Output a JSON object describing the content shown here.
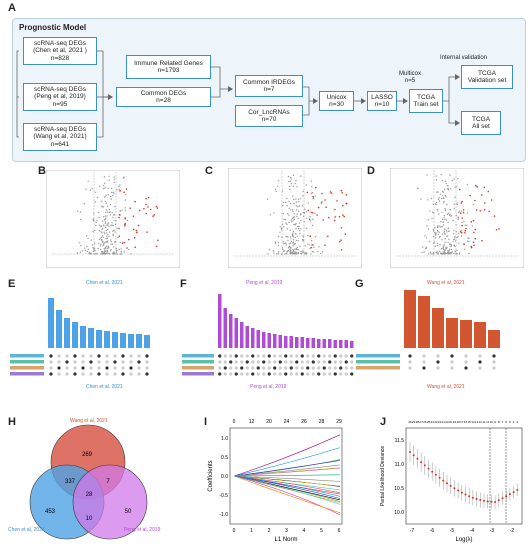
{
  "panel_labels": {
    "a": "A",
    "b": "B",
    "c": "C",
    "d": "D",
    "e": "E",
    "f": "F",
    "g": "G",
    "h": "H",
    "i": "I",
    "j": "J"
  },
  "panel_a": {
    "title": "Prognostic Model",
    "internal_validation": "Internal validation",
    "nodes": {
      "chen": [
        "scRNA-seq DEGs",
        "(Chen et al, 2021 )",
        "n=828"
      ],
      "peng": [
        "scRNA-seq DEGs",
        "(Peng et al, 2019)",
        "n=95"
      ],
      "wang": [
        "scRNA-seq DEGs",
        "(Wang et al, 2021)",
        "n=641"
      ],
      "immune": [
        "Immune Related Genes",
        "n=1793"
      ],
      "common_degs": [
        "Common DEGs",
        "n=28"
      ],
      "common_irdegs": [
        "Common IRDEGs",
        "n=7"
      ],
      "cor_lnc": [
        "Cor_LncRNAs",
        "n=70"
      ],
      "unicox": [
        "Unicox",
        "n=30"
      ],
      "lasso": [
        "LASSO",
        "n=10"
      ],
      "multicox": [
        "Multicox",
        "n=5"
      ],
      "tcga_train": [
        "TCGA",
        "Train set"
      ],
      "tcga_val": [
        "TCGA",
        "Validation set"
      ],
      "tcga_all": [
        "TCGA",
        "All set"
      ]
    }
  },
  "captions": {
    "e": "Chen et al, 2021",
    "f_top": "Peng et al, 2019",
    "f_bottom": "Peng et al, 2019",
    "g_top": "Wang et al, 2021",
    "g_bottom": "Wang et al, 2021",
    "e_bottom": "Chen et al, 2021"
  },
  "venn": {
    "wang_label": "Wang et al, 2021",
    "chen_label": "Chen et al, 2021",
    "peng_label": "Peng et al, 2019",
    "wang_only": "269",
    "chen_only": "453",
    "peng_only": "50",
    "chen_wang": "337",
    "wang_peng": "7",
    "chen_peng": "10",
    "all_three": "28",
    "colors": {
      "wang": "#d9594c",
      "chen": "#4ea3e6",
      "peng": "#d07ae8"
    }
  },
  "lasso_coef": {
    "top_ticks": [
      "0",
      "12",
      "20",
      "24",
      "26",
      "28",
      "29"
    ],
    "bottom_ticks": [
      "0",
      "1",
      "2",
      "3",
      "4",
      "5",
      "6"
    ],
    "xlabel": "L1 Norm",
    "ylabel": "Coefficients",
    "y_ticks": [
      "1.0",
      "0.5",
      "0.0",
      "-0.5",
      "-1.0"
    ]
  },
  "lasso_cv": {
    "xlabel": "Log(λ)",
    "ylabel": "Partial Likelihood Deviance",
    "x_ticks": [
      "-7",
      "-6",
      "-5",
      "-4",
      "-3",
      "-2"
    ],
    "y_ticks": [
      "11.5",
      "11.0",
      "10.5",
      "10.0"
    ]
  }
}
